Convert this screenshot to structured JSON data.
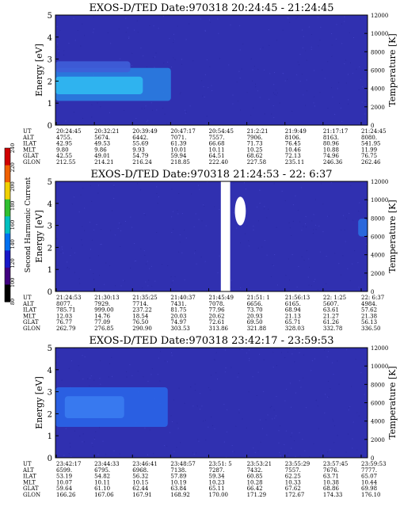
{
  "chart_data": {
    "type": "heatmap",
    "colorbar": {
      "label": "Second Harmonic Current",
      "ticks": [
        "240",
        "220",
        "200",
        "180",
        "160",
        "140",
        "120",
        "100",
        "80"
      ],
      "colors": [
        "#d00000",
        "#f06000",
        "#f0d000",
        "#30c030",
        "#00c0c0",
        "#0070f0",
        "#1818c8",
        "#400080",
        "#000000"
      ]
    },
    "background_color": "#3030b0",
    "panels": [
      {
        "title": "EXOS-D/TED   Date:970318  20:24:45 - 21:24:45",
        "ylabel_left": "Energy [eV]",
        "ylabel_right": "Temperature [K]",
        "yticks_left": [
          "0",
          "1",
          "2",
          "3",
          "4",
          "5"
        ],
        "yticks_right": [
          "0",
          "2000",
          "4000",
          "6000",
          "8000",
          "10000",
          "12000"
        ],
        "ylim_left": [
          0,
          5
        ],
        "ylim_right": [
          0,
          12000
        ],
        "data_gap": null,
        "features": [
          {
            "name": "dense emission",
            "t": [
              0.0,
              0.37
            ],
            "e": [
              1.1,
              2.6
            ],
            "color": "#2a7de0"
          },
          {
            "name": "bright core",
            "t": [
              0.0,
              0.28
            ],
            "e": [
              1.4,
              2.2
            ],
            "color": "#30b8f0"
          },
          {
            "name": "upper edge",
            "t": [
              0.0,
              0.24
            ],
            "e": [
              2.4,
              2.9
            ],
            "color": "#3f5ed8"
          }
        ],
        "ephemeris": {
          "labels": [
            "UT",
            "ALT",
            "ILAT",
            "MLT",
            "GLAT",
            "GLON"
          ],
          "columns": [
            [
              "20:24:45",
              "4755.",
              "42.95",
              "9.80",
              "42.55",
              "212.55"
            ],
            [
              "20:32:21",
              "5674.",
              "49.53",
              "9.86",
              "49.01",
              "214.21"
            ],
            [
              "20:39:49",
              "6442.",
              "55.69",
              "9.93",
              "54.79",
              "216.24"
            ],
            [
              "20:47:17",
              "7071.",
              "61.39",
              "10.01",
              "59.94",
              "218.85"
            ],
            [
              "20:54:45",
              "7557.",
              "66.68",
              "10.11",
              "64.51",
              "222.40"
            ],
            [
              "21:2:21",
              "7906.",
              "71.73",
              "10.25",
              "68.62",
              "227.58"
            ],
            [
              "21:9:49",
              "8106.",
              "76.45",
              "10.46",
              "72.13",
              "235.11"
            ],
            [
              "21:17:17",
              "8163.",
              "80.96",
              "10.88",
              "74.96",
              "246.36"
            ],
            [
              "21:24:45",
              "8080.",
              "541.95",
              "11.99",
              "76.75",
              "262.46"
            ]
          ]
        }
      },
      {
        "title": "EXOS-D/TED   Date:970318  21:24:53 - 22: 6:37",
        "ylabel_left": "Energy [eV]",
        "ylabel_right": "Temperature [K]",
        "yticks_left": [
          "0",
          "1",
          "2",
          "3",
          "4",
          "5"
        ],
        "yticks_right": [
          "0",
          "2000",
          "4000",
          "6000",
          "8000",
          "10000",
          "12000"
        ],
        "ylim_left": [
          0,
          5
        ],
        "ylim_right": [
          0,
          12000
        ],
        "data_gap": [
          0.53,
          0.56
        ],
        "features": [
          {
            "name": "white burst",
            "t": [
              0.575,
              0.61
            ],
            "e": [
              3.0,
              4.3
            ],
            "color": "#ffffff"
          },
          {
            "name": "blue patch",
            "t": [
              0.97,
              1.0
            ],
            "e": [
              2.5,
              3.3
            ],
            "color": "#2a6ee0"
          }
        ],
        "ephemeris": {
          "labels": [
            "UT",
            "ALT",
            "ILAT",
            "MLT",
            "GLAT",
            "GLON"
          ],
          "columns": [
            [
              "21:24:53",
              "8077.",
              "785.71",
              "12.03",
              "76.77",
              "262.79"
            ],
            [
              "21:30:13",
              "7929.",
              "999.00",
              "14.76",
              "77.09",
              "276.85"
            ],
            [
              "21:35:25",
              "7714.",
              "237.22",
              "18.54",
              "76.50",
              "290.90"
            ],
            [
              "21:40:37",
              "7431.",
              "81.75",
              "20.03",
              "74.97",
              "303.53"
            ],
            [
              "21:45:49",
              "7078.",
              "77.96",
              "20.62",
              "72.61",
              "313.86"
            ],
            [
              "21:51: 1",
              "6656.",
              "73.70",
              "20.93",
              "69.50",
              "321.88"
            ],
            [
              "21:56:13",
              "6165.",
              "68.94",
              "21.13",
              "65.71",
              "328.03"
            ],
            [
              "22: 1:25",
              "5607.",
              "63.61",
              "21.27",
              "61.26",
              "332.78"
            ],
            [
              "22: 6:37",
              "4984.",
              "57.62",
              "21.38",
              "56.13",
              "336.50"
            ]
          ]
        }
      },
      {
        "title": "EXOS-D/TED   Date:970318  23:42:17 - 23:59:53",
        "ylabel_left": "Energy [eV]",
        "ylabel_right": "Temperature [K]",
        "yticks_left": [
          "0",
          "1",
          "2",
          "3",
          "4",
          "5"
        ],
        "yticks_right": [
          "0",
          "2000",
          "4000",
          "6000",
          "8000",
          "10000",
          "12000"
        ],
        "ylim_left": [
          0,
          5
        ],
        "ylim_right": [
          0,
          12000
        ],
        "data_gap": null,
        "features": [
          {
            "name": "emission band",
            "t": [
              0.0,
              0.36
            ],
            "e": [
              1.4,
              3.2
            ],
            "color": "#2a64e6"
          },
          {
            "name": "band core",
            "t": [
              0.03,
              0.22
            ],
            "e": [
              1.8,
              2.8
            ],
            "color": "#3a7cf0"
          }
        ],
        "ephemeris": {
          "labels": [
            "UT",
            "ALT",
            "ILAT",
            "MLT",
            "GLAT",
            "GLON"
          ],
          "columns": [
            [
              "23:42:17",
              "6599.",
              "53.19",
              "10.07",
              "59.64",
              "166.26"
            ],
            [
              "23:44:33",
              "6795.",
              "54.82",
              "10.11",
              "61.10",
              "167.06"
            ],
            [
              "23:46:41",
              "6968.",
              "56.32",
              "10.15",
              "62.44",
              "167.91"
            ],
            [
              "23:48:57",
              "7138.",
              "57.89",
              "10.19",
              "63.84",
              "168.92"
            ],
            [
              "23:51: 5",
              "7287.",
              "59.34",
              "10.23",
              "65.11",
              "170.00"
            ],
            [
              "23:53:21",
              "7432.",
              "60.85",
              "10.28",
              "66.42",
              "171.29"
            ],
            [
              "23:55:29",
              "7557.",
              "62.25",
              "10.33",
              "67.62",
              "172.67"
            ],
            [
              "23:57:45",
              "7676.",
              "63.71",
              "10.38",
              "68.86",
              "174.33"
            ],
            [
              "23:59:53",
              "7777.",
              "65.07",
              "10.44",
              "69.98",
              "176.10"
            ]
          ]
        }
      }
    ]
  }
}
